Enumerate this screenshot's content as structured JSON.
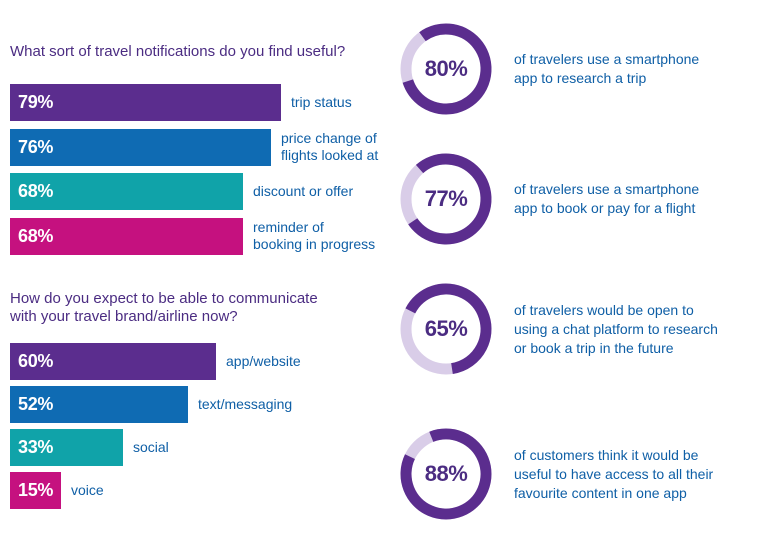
{
  "chart_data": [
    {
      "type": "bar",
      "orientation": "horizontal",
      "title": "What sort of travel notifications do you find useful?",
      "categories": [
        "trip status",
        "price change of flights looked at",
        "discount or offer",
        "reminder of booking in progress"
      ],
      "values": [
        79,
        76,
        68,
        68
      ],
      "value_labels": [
        "79%",
        "76%",
        "68%",
        "68%"
      ],
      "label_lines": [
        [
          "trip status"
        ],
        [
          "price change of",
          "flights looked at"
        ],
        [
          "discount or offer"
        ],
        [
          "reminder of",
          "booking in progress"
        ]
      ],
      "colors": [
        "#5b2d8e",
        "#0f6bb3",
        "#10a3a9",
        "#c5117f"
      ],
      "unit": "%",
      "xlim": [
        0,
        100
      ]
    },
    {
      "type": "bar",
      "orientation": "horizontal",
      "title": "How do you expect to be able to communicate with your travel brand/airline now?",
      "title_lines": [
        "How do you expect to be able to communicate",
        "with your travel brand/airline now?"
      ],
      "categories": [
        "app/website",
        "text/messaging",
        "social",
        "voice"
      ],
      "values": [
        60,
        52,
        33,
        15
      ],
      "value_labels": [
        "60%",
        "52%",
        "33%",
        "15%"
      ],
      "label_lines": [
        [
          "app/website"
        ],
        [
          "text/messaging"
        ],
        [
          "social"
        ],
        [
          "voice"
        ]
      ],
      "colors": [
        "#5b2d8e",
        "#0f6bb3",
        "#10a3a9",
        "#c5117f"
      ],
      "unit": "%",
      "xlim": [
        0,
        100
      ]
    },
    {
      "type": "pie",
      "style": "donut-progress",
      "values": [
        80,
        77,
        65,
        88
      ],
      "value_labels": [
        "80%",
        "77%",
        "65%",
        "88%"
      ],
      "descriptions": [
        [
          "of travelers use a smartphone",
          "app to research a trip"
        ],
        [
          "of travelers use a smartphone",
          "app to book or pay for a flight"
        ],
        [
          "of travelers would be open to",
          "using a chat platform to research",
          "or book a trip in the future"
        ],
        [
          "of customers think it would be",
          "useful to have access to all their",
          "favourite content in one app"
        ]
      ],
      "colors": {
        "filled": "#5b2d8e",
        "track": "#d9cde8"
      }
    }
  ]
}
